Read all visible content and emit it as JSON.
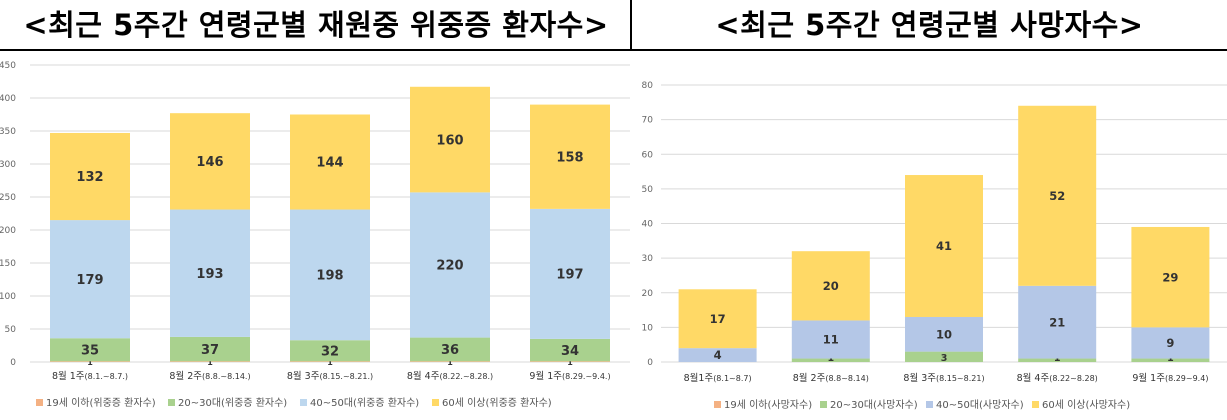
{
  "charts": [
    {
      "id": "left",
      "title": "<최근 5주간 연령군별 재원중 위중증 환자수>",
      "chart_data": {
        "type": "bar",
        "stacked": true,
        "title": "<최근 5주간 연령군별 재원중 위중증 환자수>",
        "categories": [
          "8월 1주(8.1.~8.7.)",
          "8월 2주(8.8.~8.14.)",
          "8월 3주(8.15.~8.21.)",
          "8월 4주(8.22.~8.28.)",
          "9월 1주(8.29.~9.4.)"
        ],
        "category_labels": [
          {
            "main": "8월 1주",
            "sub": "(8.1.~8.7.)"
          },
          {
            "main": "8월 2주",
            "sub": "(8.8.~8.14.)"
          },
          {
            "main": "8월 3주",
            "sub": "(8.15.~8.21.)"
          },
          {
            "main": "8월 4주",
            "sub": "(8.22.~8.28.)"
          },
          {
            "main": "9월 1주",
            "sub": "(8.29.~9.4.)"
          }
        ],
        "series": [
          {
            "name": "19세 이하(위중증 환자수)",
            "color": "#F4B183",
            "values": [
              1,
              1,
              1,
              1,
              1
            ]
          },
          {
            "name": "20~30대(위중증 환자수)",
            "color": "#A9D18E",
            "values": [
              35,
              37,
              32,
              36,
              34
            ]
          },
          {
            "name": "40~50대(위중증 환자수)",
            "color": "#BDD7EE",
            "values": [
              179,
              193,
              198,
              220,
              197
            ]
          },
          {
            "name": "60세 이상(위중증 환자수)",
            "color": "#FFD966",
            "values": [
              132,
              146,
              144,
              160,
              158
            ]
          }
        ],
        "ylim": [
          0,
          450
        ],
        "yticks": [
          0,
          50,
          100,
          150,
          200,
          250,
          300,
          350,
          400,
          450
        ],
        "grid": true,
        "legend": "bottom"
      }
    },
    {
      "id": "right",
      "title": "<최근 5주간 연령군별 사망자수>",
      "chart_data": {
        "type": "bar",
        "stacked": true,
        "title": "<최근 5주간 연령군별 사망자수>",
        "categories": [
          "8월1주(8.1~8.7)",
          "8월 2주(8.8~8.14)",
          "8월 3주(8.15~8.21)",
          "8월 4주(8.22~8.28)",
          "9월 1주(8.29~9.4)"
        ],
        "category_labels": [
          {
            "main": "8월1주",
            "sub": "(8.1~8.7)"
          },
          {
            "main": "8월 2주",
            "sub": "(8.8~8.14)"
          },
          {
            "main": "8월 3주",
            "sub": "(8.15~8.21)"
          },
          {
            "main": "8월 4주",
            "sub": "(8.22~8.28)"
          },
          {
            "main": "9월 1주",
            "sub": "(8.29~9.4)"
          }
        ],
        "series": [
          {
            "name": "19세 이하(사망자수)",
            "color": "#F4B183",
            "values": [
              0,
              0,
              0,
              0,
              0
            ]
          },
          {
            "name": "20~30대(사망자수)",
            "color": "#A9D18E",
            "values": [
              0,
              1,
              3,
              1,
              1
            ]
          },
          {
            "name": "40~50대(사망자수)",
            "color": "#B4C7E7",
            "values": [
              4,
              11,
              10,
              21,
              9
            ]
          },
          {
            "name": "60세 이상(사망자수)",
            "color": "#FFD966",
            "values": [
              17,
              20,
              41,
              52,
              29
            ]
          }
        ],
        "ylim": [
          0,
          80
        ],
        "yticks": [
          0,
          10,
          20,
          30,
          40,
          50,
          60,
          70,
          80
        ],
        "grid": true,
        "legend": "bottom"
      }
    }
  ]
}
